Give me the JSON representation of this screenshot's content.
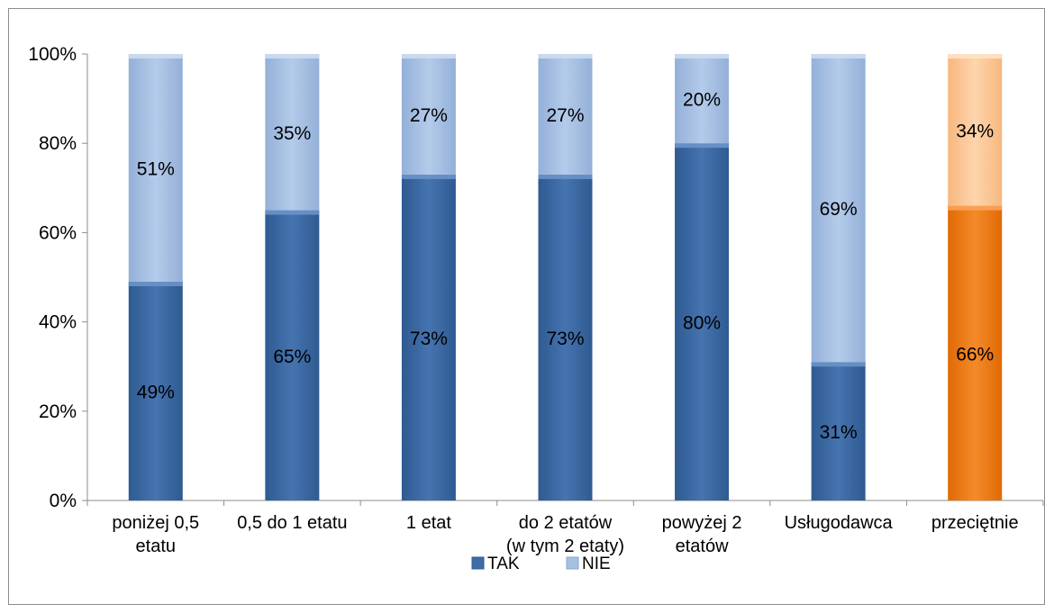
{
  "chart_data": {
    "type": "bar",
    "stacked": true,
    "categories": [
      [
        "poniżej 0,5",
        "etatu"
      ],
      [
        "0,5 do 1 etatu"
      ],
      [
        "1 etat"
      ],
      [
        "do 2 etatów",
        "(w tym 2 etaty)"
      ],
      [
        "powyżej 2",
        "etatów"
      ],
      [
        "Usługodawca"
      ],
      [
        "przeciętnie"
      ]
    ],
    "series": [
      {
        "name": "TAK",
        "values": [
          49,
          65,
          73,
          73,
          80,
          31,
          66
        ],
        "color": "#3e6ca8",
        "labels": [
          "49%",
          "65%",
          "73%",
          "73%",
          "80%",
          "31%",
          "66%"
        ]
      },
      {
        "name": "NIE",
        "values": [
          51,
          35,
          27,
          27,
          20,
          69,
          34
        ],
        "color": "#a7c0e2",
        "labels": [
          "51%",
          "35%",
          "27%",
          "27%",
          "20%",
          "69%",
          "34%"
        ]
      }
    ],
    "highlight_category_index": 6,
    "highlight_colors": {
      "TAK": "#f07a12",
      "NIE": "#fbc99a"
    },
    "ylim": [
      0,
      100
    ],
    "yticks": [
      0,
      20,
      40,
      60,
      80,
      100
    ],
    "ytick_labels": [
      "0%",
      "20%",
      "40%",
      "60%",
      "80%",
      "100%"
    ],
    "grid": false,
    "legend_position": "bottom",
    "xlabel": "",
    "ylabel": "",
    "title": ""
  }
}
